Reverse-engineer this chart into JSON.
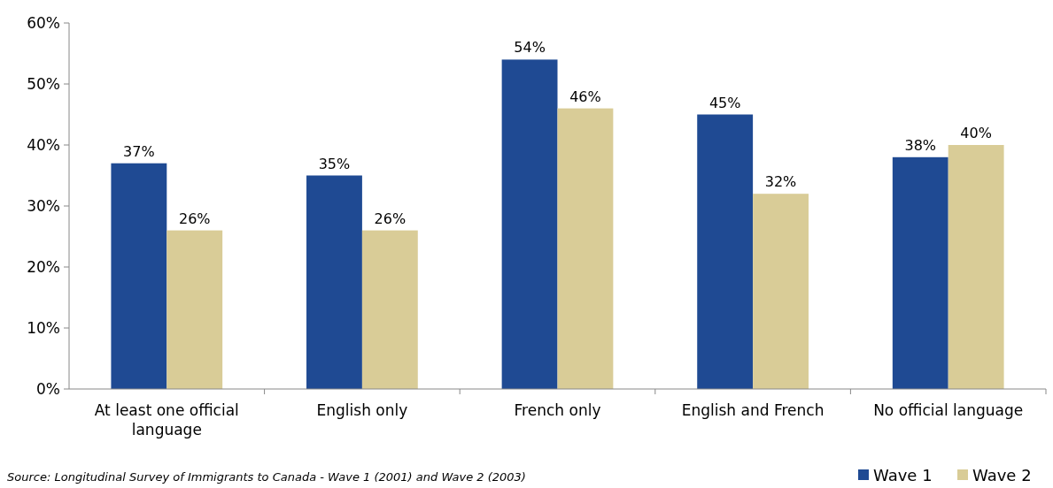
{
  "chart_data": {
    "type": "bar",
    "categories": [
      "At least one official language",
      "English only",
      "French only",
      "English and French",
      "No official language"
    ],
    "series": [
      {
        "name": "Wave 1",
        "color": "#1f4a93",
        "values": [
          37,
          35,
          54,
          45,
          38
        ],
        "value_labels": [
          "37%",
          "35%",
          "54%",
          "45%",
          "38%"
        ]
      },
      {
        "name": "Wave 2",
        "color": "#d9cc97",
        "values": [
          26,
          26,
          46,
          32,
          40
        ],
        "value_labels": [
          "26%",
          "26%",
          "46%",
          "32%",
          "40%"
        ]
      }
    ],
    "ylim": [
      0,
      60
    ],
    "yticks": [
      {
        "value": 0,
        "label": "0%"
      },
      {
        "value": 10,
        "label": "10%"
      },
      {
        "value": 20,
        "label": "20%"
      },
      {
        "value": 30,
        "label": "30%"
      },
      {
        "value": 40,
        "label": "40%"
      },
      {
        "value": 50,
        "label": "50%"
      },
      {
        "value": 60,
        "label": "60%"
      }
    ],
    "grid": false,
    "legend": "bottom right",
    "annotations": [
      "Source: Longitudinal Survey of Immigrants to Canada - Wave 1 (2001) and Wave 2 (2003)"
    ]
  }
}
